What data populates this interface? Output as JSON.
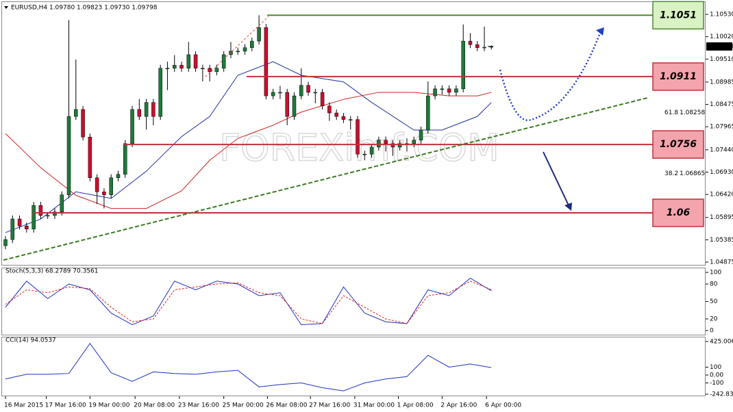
{
  "header": {
    "text": "EURUSD,H4  1.09780 1.09823 1.09730 1.09798"
  },
  "chart_data": [
    {
      "type": "candlestick",
      "watermark": "FOREXimf.COM",
      "ylim": [
        1.04875,
        1.1053
      ],
      "yticks": [
        {
          "value": 1.1053,
          "label": "1.10530"
        },
        {
          "value": 1.1002,
          "label": "1.10020"
        },
        {
          "value": 1.0951,
          "label": "1.09510"
        },
        1.08985,
        1.08475,
        1.07965,
        {
          "value": 1.0744,
          "label": "1.07440"
        },
        {
          "value": 1.0693,
          "label": "1.06930"
        },
        {
          "value": 1.0642,
          "label": "1.06420"
        },
        1.05895,
        1.05385,
        1.04875
      ],
      "xticks": [
        {
          "value": 0,
          "label": "16 Mar 2015"
        },
        {
          "value": 5.8,
          "label": "17 Mar 16:00"
        },
        {
          "value": 12,
          "label": "19 Mar 00:00"
        },
        {
          "value": 18.4,
          "label": "20 Mar 08:00"
        },
        {
          "value": 24.7,
          "label": "23 Mar 16:00"
        },
        {
          "value": 31,
          "label": "25 Mar 00:00"
        },
        {
          "value": 37.2,
          "label": "26 Mar 08:00"
        },
        {
          "value": 43.3,
          "label": "27 Mar 16:00"
        },
        {
          "value": 49.6,
          "label": "31 Mar 00:00"
        },
        {
          "value": 55.8,
          "label": "1 Apr 08:00"
        },
        {
          "value": 62,
          "label": "2 Apr 16:00"
        },
        {
          "value": 68.3,
          "label": "6 Apr 00:00"
        }
      ],
      "up_color": "#1f7a3a",
      "down_color": "#c8102e",
      "candles": [
        [
          1.0525,
          1.0547,
          1.0517,
          1.0539
        ],
        [
          1.0539,
          1.0594,
          1.0531,
          1.0586
        ],
        [
          1.0586,
          1.0594,
          1.0562,
          1.057
        ],
        [
          1.057,
          1.0578,
          1.0555,
          1.0563
        ],
        [
          1.0563,
          1.0625,
          1.0555,
          1.0617
        ],
        [
          1.0617,
          1.0625,
          1.0586,
          1.0594
        ],
        [
          1.0594,
          1.0602,
          1.0586,
          1.0594
        ],
        [
          1.0594,
          1.061,
          1.0586,
          1.0602
        ],
        [
          1.0602,
          1.0649,
          1.0594,
          1.0641
        ],
        [
          1.0641,
          1.104,
          1.0633,
          1.082
        ],
        [
          1.082,
          1.095,
          1.0812,
          1.0836
        ],
        [
          1.0836,
          1.0844,
          1.0765,
          1.0773
        ],
        [
          1.0773,
          1.0781,
          1.0672,
          1.068
        ],
        [
          1.068,
          1.0688,
          1.062,
          1.0648
        ],
        [
          1.0648,
          1.0656,
          1.061,
          1.0641
        ],
        [
          1.0641,
          1.0688,
          1.0633,
          1.068
        ],
        [
          1.068,
          1.0696,
          1.0672,
          1.0688
        ],
        [
          1.0688,
          1.0766,
          1.068,
          1.0758
        ],
        [
          1.0758,
          1.0844,
          1.075,
          1.0836
        ],
        [
          1.0836,
          1.086,
          1.0812,
          1.082
        ],
        [
          1.082,
          1.086,
          1.079,
          1.0852
        ],
        [
          1.0852,
          1.086,
          1.08,
          1.082
        ],
        [
          1.082,
          1.0938,
          1.0812,
          1.093
        ],
        [
          1.093,
          1.0945,
          1.088,
          1.093
        ],
        [
          1.093,
          1.096,
          1.0922,
          1.0937
        ],
        [
          1.0937,
          1.0945,
          1.0922,
          1.093
        ],
        [
          1.093,
          1.099,
          1.0922,
          1.0961
        ],
        [
          1.0961,
          1.0969,
          1.0922,
          1.093
        ],
        [
          1.093,
          1.0938,
          1.09,
          1.093
        ],
        [
          1.093,
          1.0938,
          1.09,
          1.0922
        ],
        [
          1.0922,
          1.0938,
          1.0914,
          1.093
        ],
        [
          1.093,
          1.0969,
          1.0922,
          1.0961
        ],
        [
          1.0961,
          1.099,
          1.0953,
          1.0969
        ],
        [
          1.0969,
          1.0977,
          1.0961,
          1.0969
        ],
        [
          1.0969,
          1.0985,
          1.0961,
          1.0977
        ],
        [
          1.0977,
          1.1,
          1.0969,
          1.0992
        ],
        [
          1.0992,
          1.1051,
          1.0984,
          1.1023
        ],
        [
          1.1023,
          1.1031,
          1.0859,
          1.0867
        ],
        [
          1.0867,
          1.0883,
          1.0859,
          1.0875
        ],
        [
          1.0875,
          1.089,
          1.086,
          1.0875
        ],
        [
          1.0875,
          1.0883,
          1.08,
          1.082
        ],
        [
          1.082,
          1.0875,
          1.0812,
          1.0867
        ],
        [
          1.0867,
          1.093,
          1.0859,
          1.0891
        ],
        [
          1.0891,
          1.0899,
          1.0867,
          1.0875
        ],
        [
          1.0875,
          1.0883,
          1.085,
          1.0875
        ],
        [
          1.0875,
          1.0883,
          1.0836,
          1.0844
        ],
        [
          1.0844,
          1.0852,
          1.081,
          1.0828
        ],
        [
          1.0828,
          1.0836,
          1.0812,
          1.082
        ],
        [
          1.082,
          1.0828,
          1.0805,
          1.0813
        ],
        [
          1.0813,
          1.0821,
          1.079,
          1.0813
        ],
        [
          1.0813,
          1.0821,
          1.0726,
          1.0734
        ],
        [
          1.0734,
          1.0742,
          1.072,
          1.0734
        ],
        [
          1.0734,
          1.0758,
          1.0726,
          1.075
        ],
        [
          1.075,
          1.0774,
          1.0742,
          1.0766
        ],
        [
          1.0766,
          1.0774,
          1.074,
          1.0758
        ],
        [
          1.0758,
          1.0766,
          1.073,
          1.075
        ],
        [
          1.075,
          1.0766,
          1.0742,
          1.0758
        ],
        [
          1.0758,
          1.077,
          1.074,
          1.0758
        ],
        [
          1.0758,
          1.0774,
          1.075,
          1.0766
        ],
        [
          1.0766,
          1.0797,
          1.0758,
          1.0789
        ],
        [
          1.0789,
          1.09,
          1.0781,
          1.0867
        ],
        [
          1.0867,
          1.0891,
          1.0859,
          1.0883
        ],
        [
          1.0883,
          1.0891,
          1.087,
          1.0883
        ],
        [
          1.0883,
          1.0891,
          1.0867,
          1.0875
        ],
        [
          1.0875,
          1.0891,
          1.0867,
          1.0883
        ],
        [
          1.0883,
          1.103,
          1.0875,
          1.0992
        ],
        [
          1.0992,
          1.101,
          1.0976,
          1.0984
        ],
        [
          1.0984,
          1.0992,
          1.0969,
          1.0977
        ],
        [
          1.0977,
          1.1025,
          1.0969,
          1.0978
        ],
        [
          1.0978,
          1.09823,
          1.0973,
          1.09798
        ]
      ],
      "current_price": 1.09798,
      "series": [
        {
          "color": "#1f2f9f",
          "x": [
            0,
            5,
            10,
            15,
            20,
            25,
            29,
            33,
            38,
            42,
            48,
            52,
            58,
            62,
            67,
            69
          ],
          "values": [
            1.0555,
            1.0586,
            1.0648,
            1.0633,
            1.0695,
            1.0774,
            1.082,
            1.0914,
            1.0945,
            1.0914,
            1.0899,
            1.0852,
            1.0789,
            1.0789,
            1.082,
            1.0852
          ]
        },
        {
          "color": "#d02020",
          "x": [
            0,
            5,
            10,
            15,
            20,
            25,
            29,
            33,
            38,
            42,
            48,
            53,
            58,
            63,
            67,
            69
          ],
          "values": [
            1.0781,
            1.0703,
            1.064,
            1.061,
            1.061,
            1.065,
            1.072,
            1.077,
            1.08,
            1.083,
            1.0859,
            1.0875,
            1.0875,
            1.0867,
            1.0867,
            1.0875
          ]
        }
      ],
      "levels": [
        {
          "value": 1.1051,
          "color": "#4e8a2e",
          "fill": "#d8f2c4"
        },
        {
          "value": 1.0911,
          "color": "#c0303a",
          "fill": "#f4a4ac"
        },
        {
          "value": 1.0756,
          "color": "#c0303a",
          "fill": "#f4a4ac"
        },
        {
          "value": 1.06,
          "color": "#c0303a",
          "fill": "#f4a4ac"
        }
      ],
      "fib": [
        {
          "label": "61.8",
          "value": 1.08258
        },
        {
          "label": "38.2",
          "value": 1.06865
        }
      ]
    },
    {
      "type": "line",
      "title": "Stoch(5,3,3) 68.2789 70.3561",
      "ylim": [
        0,
        100
      ],
      "yticks": [
        100,
        80,
        50,
        20,
        0
      ],
      "x": [
        0,
        3,
        6,
        9,
        12,
        15,
        18,
        21,
        24,
        27,
        30,
        33,
        36,
        39,
        42,
        45,
        48,
        51,
        54,
        57,
        60,
        63,
        66,
        69
      ],
      "series": [
        {
          "color": "#1f2fbf",
          "values": [
            40,
            85,
            55,
            80,
            70,
            30,
            10,
            25,
            85,
            70,
            85,
            80,
            60,
            65,
            10,
            12,
            75,
            30,
            15,
            12,
            70,
            60,
            90,
            68.2789
          ]
        },
        {
          "color": "#e02020",
          "dashed": true,
          "values": [
            45,
            70,
            65,
            75,
            72,
            40,
            15,
            20,
            70,
            75,
            80,
            82,
            65,
            60,
            20,
            12,
            60,
            40,
            20,
            12,
            60,
            65,
            85,
            70.3561
          ]
        }
      ]
    },
    {
      "type": "line",
      "title": "CCI(14) 94.0537",
      "ylim": [
        -242.836,
        425.0064
      ],
      "yticks": [
        425.0064,
        100,
        {
          "value": 0,
          "label": "0.00"
        },
        -100,
        -242.836
      ],
      "x": [
        0,
        3,
        6,
        9,
        12,
        15,
        18,
        21,
        24,
        27,
        30,
        33,
        36,
        39,
        42,
        45,
        48,
        51,
        54,
        57,
        60,
        63,
        66,
        69
      ],
      "series": [
        {
          "color": "#1f2fbf",
          "values": [
            -50,
            10,
            10,
            20,
            400,
            30,
            -80,
            40,
            20,
            10,
            40,
            60,
            -150,
            -120,
            -100,
            -160,
            -200,
            -100,
            -50,
            -20,
            250,
            100,
            140,
            94.0537
          ]
        }
      ]
    }
  ]
}
